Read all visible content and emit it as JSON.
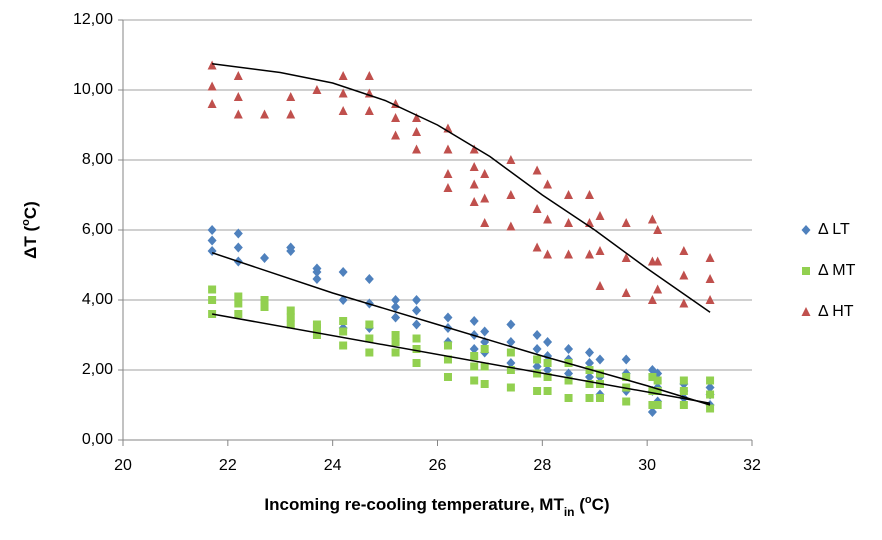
{
  "chart_data": {
    "type": "scatter",
    "xlabel": [
      "Incoming re-cooling temperature, MT",
      "in",
      " (",
      "o",
      "C)"
    ],
    "ylabel": [
      "ΔT (",
      "o",
      "C)"
    ],
    "xlim": [
      20,
      32
    ],
    "xticks": [
      20,
      22,
      24,
      26,
      28,
      30,
      32
    ],
    "ylim": [
      0,
      12
    ],
    "yticks": [
      {
        "value": 0,
        "label": "0,00"
      },
      {
        "value": 2,
        "label": "2,00"
      },
      {
        "value": 4,
        "label": "4,00"
      },
      {
        "value": 6,
        "label": "6,00"
      },
      {
        "value": 8,
        "label": "8,00"
      },
      {
        "value": 10,
        "label": "10,00"
      },
      {
        "value": 12,
        "label": "12,00"
      }
    ],
    "grid": true,
    "legend": "right",
    "series": [
      {
        "name": "Δ LT",
        "color": "#4f81bd",
        "marker": "diamond",
        "x": [
          21.7,
          21.7,
          21.7,
          22.2,
          22.2,
          22.2,
          22.7,
          23.2,
          23.2,
          23.7,
          23.7,
          23.7,
          24.2,
          24.2,
          24.2,
          24.7,
          24.7,
          24.7,
          25.2,
          25.2,
          25.2,
          25.6,
          25.6,
          25.6,
          26.2,
          26.2,
          26.2,
          26.7,
          26.7,
          26.7,
          26.9,
          26.9,
          26.9,
          27.4,
          27.4,
          27.4,
          27.9,
          27.9,
          27.9,
          28.1,
          28.1,
          28.1,
          28.5,
          28.5,
          28.5,
          28.9,
          28.9,
          28.9,
          29.1,
          29.1,
          29.1,
          29.6,
          29.6,
          29.6,
          30.1,
          30.1,
          30.1,
          30.2,
          30.2,
          30.2,
          30.7,
          30.7,
          30.7,
          31.2,
          31.2,
          31.2
        ],
        "values": [
          5.4,
          5.7,
          6.0,
          5.1,
          5.5,
          5.9,
          5.2,
          5.4,
          5.5,
          4.6,
          4.8,
          4.9,
          3.2,
          4.0,
          4.8,
          3.2,
          3.9,
          4.6,
          3.5,
          3.8,
          4.0,
          3.3,
          3.7,
          4.0,
          2.8,
          3.2,
          3.5,
          2.6,
          3.0,
          3.4,
          2.5,
          2.8,
          3.1,
          2.2,
          2.8,
          3.3,
          2.1,
          2.6,
          3.0,
          2.0,
          2.4,
          2.8,
          1.9,
          2.3,
          2.6,
          1.8,
          2.2,
          2.5,
          1.3,
          1.8,
          2.3,
          1.4,
          1.9,
          2.3,
          0.8,
          1.4,
          2.0,
          1.1,
          1.5,
          1.9,
          1.2,
          1.4,
          1.6,
          1.0,
          1.3,
          1.5
        ]
      },
      {
        "name": "Δ MT",
        "color": "#92d050",
        "marker": "square",
        "x": [
          21.7,
          21.7,
          21.7,
          22.2,
          22.2,
          22.2,
          22.7,
          22.7,
          23.2,
          23.2,
          23.2,
          23.7,
          23.7,
          23.7,
          24.2,
          24.2,
          24.2,
          24.7,
          24.7,
          24.7,
          25.2,
          25.2,
          25.2,
          25.6,
          25.6,
          25.6,
          26.2,
          26.2,
          26.2,
          26.7,
          26.7,
          26.7,
          26.9,
          26.9,
          26.9,
          27.4,
          27.4,
          27.4,
          27.9,
          27.9,
          27.9,
          28.1,
          28.1,
          28.1,
          28.5,
          28.5,
          28.5,
          28.9,
          28.9,
          28.9,
          29.1,
          29.1,
          29.1,
          29.6,
          29.6,
          29.6,
          30.1,
          30.1,
          30.1,
          30.2,
          30.2,
          30.2,
          30.7,
          30.7,
          30.7,
          31.2,
          31.2,
          31.2
        ],
        "values": [
          3.6,
          4.0,
          4.3,
          3.6,
          3.9,
          4.1,
          3.8,
          4.0,
          3.3,
          3.5,
          3.7,
          3.0,
          3.2,
          3.3,
          2.7,
          3.1,
          3.4,
          2.5,
          2.9,
          3.3,
          2.5,
          2.8,
          3.0,
          2.2,
          2.6,
          2.9,
          1.8,
          2.3,
          2.7,
          1.7,
          2.1,
          2.4,
          1.6,
          2.1,
          2.6,
          1.5,
          2.0,
          2.5,
          1.4,
          1.9,
          2.3,
          1.4,
          1.8,
          2.2,
          1.2,
          1.7,
          2.2,
          1.2,
          1.6,
          2.0,
          1.2,
          1.6,
          1.9,
          1.1,
          1.5,
          1.8,
          1.0,
          1.4,
          1.8,
          1.0,
          1.4,
          1.7,
          1.0,
          1.4,
          1.7,
          0.9,
          1.3,
          1.7
        ]
      },
      {
        "name": "Δ HT",
        "color": "#c0504d",
        "marker": "triangle",
        "x": [
          21.7,
          21.7,
          21.7,
          22.2,
          22.2,
          22.2,
          22.7,
          23.2,
          23.2,
          23.7,
          24.2,
          24.2,
          24.2,
          24.7,
          24.7,
          24.7,
          25.2,
          25.2,
          25.2,
          25.6,
          25.6,
          25.6,
          26.2,
          26.2,
          26.2,
          26.2,
          26.7,
          26.7,
          26.7,
          26.7,
          26.9,
          26.9,
          26.9,
          27.4,
          27.4,
          27.4,
          27.9,
          27.9,
          27.9,
          28.1,
          28.1,
          28.1,
          28.5,
          28.5,
          28.5,
          28.9,
          28.9,
          28.9,
          29.1,
          29.1,
          29.1,
          29.6,
          29.6,
          29.6,
          30.1,
          30.1,
          30.1,
          30.2,
          30.2,
          30.2,
          30.7,
          30.7,
          30.7,
          31.2,
          31.2,
          31.2
        ],
        "values": [
          9.6,
          10.1,
          10.7,
          9.3,
          9.8,
          10.4,
          9.3,
          9.3,
          9.8,
          10.0,
          9.4,
          9.9,
          10.4,
          9.4,
          9.9,
          10.4,
          8.7,
          9.2,
          9.6,
          8.3,
          8.8,
          9.2,
          7.2,
          7.6,
          8.3,
          8.9,
          6.8,
          7.3,
          7.8,
          8.3,
          6.2,
          6.9,
          7.6,
          6.1,
          7.0,
          8.0,
          5.5,
          6.6,
          7.7,
          5.3,
          6.3,
          7.3,
          5.3,
          6.2,
          7.0,
          5.3,
          6.2,
          7.0,
          4.4,
          5.4,
          6.4,
          4.2,
          5.2,
          6.2,
          4.0,
          5.1,
          6.3,
          4.3,
          5.1,
          6.0,
          3.9,
          4.7,
          5.4,
          4.0,
          4.6,
          5.2
        ]
      }
    ],
    "trendlines": [
      {
        "color": "#000000",
        "x": [
          21.7,
          31.2
        ],
        "values": [
          3.6,
          1.05
        ]
      },
      {
        "color": "#000000",
        "x": [
          21.7,
          24,
          26,
          28,
          30,
          31.2
        ],
        "values": [
          5.35,
          4.2,
          3.3,
          2.4,
          1.55,
          1.0
        ]
      },
      {
        "color": "#000000",
        "x": [
          21.7,
          23,
          24,
          25,
          26,
          27,
          28,
          29,
          30,
          31.2
        ],
        "values": [
          10.75,
          10.5,
          10.2,
          9.7,
          9.0,
          8.1,
          7.0,
          6.0,
          4.9,
          3.65
        ]
      }
    ]
  }
}
